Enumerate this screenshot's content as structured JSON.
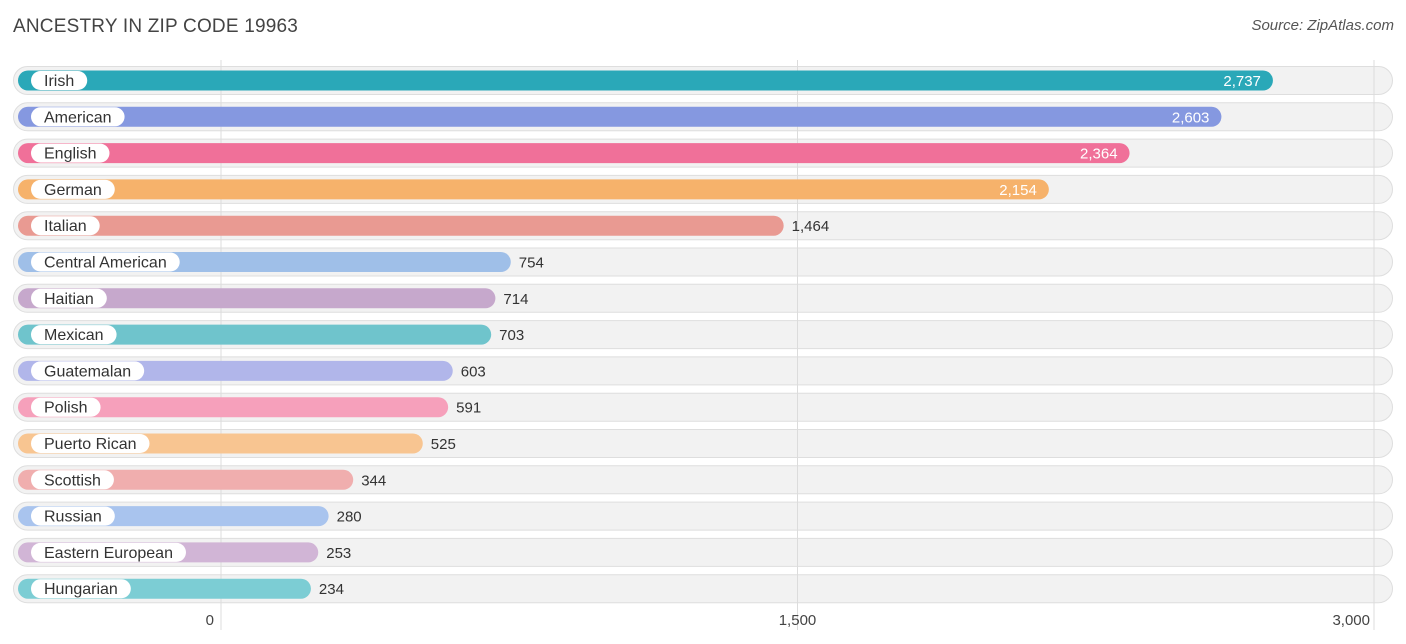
{
  "chart_data": {
    "type": "bar",
    "orientation": "horizontal",
    "title": "ANCESTRY IN ZIP CODE 19963",
    "source": "Source: ZipAtlas.com",
    "categories": [
      "Irish",
      "American",
      "English",
      "German",
      "Italian",
      "Central American",
      "Haitian",
      "Mexican",
      "Guatemalan",
      "Polish",
      "Puerto Rican",
      "Scottish",
      "Russian",
      "Eastern European",
      "Hungarian"
    ],
    "values": [
      2737,
      2603,
      2364,
      2154,
      1464,
      754,
      714,
      703,
      603,
      591,
      525,
      344,
      280,
      253,
      234
    ],
    "value_labels": [
      "2,737",
      "2,603",
      "2,364",
      "2,154",
      "1,464",
      "754",
      "714",
      "703",
      "603",
      "591",
      "525",
      "344",
      "280",
      "253",
      "234"
    ],
    "colors": [
      "#2aa8b8",
      "#8598e0",
      "#f07099",
      "#f6b26b",
      "#e99a92",
      "#9fbfe8",
      "#c6a8cc",
      "#6fc4cc",
      "#b1b6ea",
      "#f6a0bb",
      "#f8c591",
      "#f0aeae",
      "#a9c4ee",
      "#d1b5d6",
      "#7ccdd4"
    ],
    "xlim": [
      0,
      3000
    ],
    "xticks": [
      0,
      1500,
      3000
    ],
    "xtick_labels": [
      "0",
      "1,500",
      "3,000"
    ],
    "grid": true
  }
}
